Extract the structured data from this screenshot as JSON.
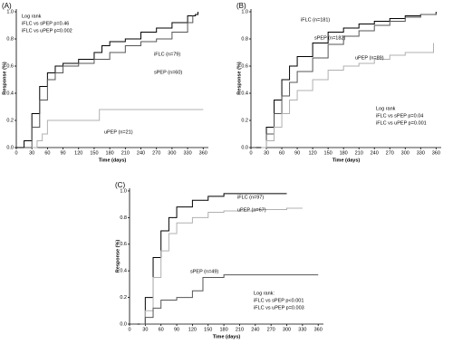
{
  "chart_data": [
    {
      "type": "step",
      "panel": "(A)",
      "y_label": "Response (%)",
      "x_label": "Time (days)",
      "annotations": [
        "Log rank",
        "iFLC vs sPEP p=0.46",
        "iFLC vs uPEP p=0.002"
      ],
      "xlim": [
        0,
        370
      ],
      "xticks": [
        0,
        30,
        60,
        90,
        120,
        150,
        180,
        210,
        240,
        270,
        300,
        330,
        360
      ],
      "ylim": [
        0,
        1.02
      ],
      "yticks": [
        {
          "value": 0,
          "label": "0.0"
        },
        0.2,
        0.4,
        0.6,
        0.8,
        {
          "value": 1,
          "label": "1.0"
        }
      ],
      "series": [
        {
          "name": "iFLC (n=79)",
          "color": "#000000",
          "x": [
            0,
            15,
            30,
            45,
            60,
            75,
            90,
            120,
            150,
            165,
            180,
            210,
            240,
            270,
            300,
            330,
            345,
            350
          ],
          "values": [
            0,
            0.05,
            0.25,
            0.45,
            0.55,
            0.6,
            0.62,
            0.65,
            0.7,
            0.75,
            0.78,
            0.8,
            0.85,
            0.88,
            0.92,
            0.97,
            0.98,
            1.0
          ]
        },
        {
          "name": "sPEP (n=60)",
          "color": "#555555",
          "x": [
            15,
            30,
            45,
            60,
            75,
            90,
            120,
            150,
            180,
            210,
            240,
            270,
            300,
            330,
            340
          ],
          "values": [
            0,
            0.15,
            0.35,
            0.5,
            0.55,
            0.6,
            0.62,
            0.65,
            0.7,
            0.75,
            0.78,
            0.8,
            0.85,
            0.92,
            0.97
          ]
        },
        {
          "name": "uPEP (n=21)",
          "color": "#b0b0b0",
          "x": [
            30,
            40,
            50,
            60,
            160,
            360
          ],
          "values": [
            0,
            0.05,
            0.1,
            0.2,
            0.28,
            0.28
          ]
        }
      ]
    },
    {
      "type": "step",
      "panel": "(B)",
      "y_label": "Response (%)",
      "x_label": "Time (days)",
      "annotations": [
        "Log rank",
        "iFLC vs sPEP p=0.04",
        "iFLC vs uPEP p=0.001"
      ],
      "xlim": [
        0,
        370
      ],
      "xticks": [
        0,
        30,
        60,
        90,
        120,
        150,
        180,
        210,
        240,
        270,
        300,
        330,
        360
      ],
      "ylim": [
        0,
        1.02
      ],
      "yticks": [
        {
          "value": 0,
          "label": "0.0"
        },
        0.2,
        0.4,
        0.6,
        0.8,
        {
          "value": 1,
          "label": "1.0"
        }
      ],
      "series": [
        {
          "name": "iFLC (n=181)",
          "color": "#000000",
          "x": [
            10,
            30,
            45,
            60,
            75,
            90,
            120,
            150,
            180,
            210,
            240,
            270,
            300,
            330,
            360
          ],
          "values": [
            0,
            0.15,
            0.35,
            0.5,
            0.6,
            0.67,
            0.77,
            0.85,
            0.88,
            0.91,
            0.93,
            0.95,
            0.97,
            0.98,
            1.0
          ]
        },
        {
          "name": "sPEP (n=182)",
          "color": "#555555",
          "x": [
            20,
            30,
            45,
            60,
            75,
            90,
            120,
            150,
            180,
            210,
            240,
            270,
            300,
            330,
            360
          ],
          "values": [
            0,
            0.1,
            0.25,
            0.38,
            0.48,
            0.56,
            0.66,
            0.76,
            0.82,
            0.86,
            0.9,
            0.93,
            0.96,
            0.98,
            0.99
          ]
        },
        {
          "name": "uPEP (n=89)",
          "color": "#b0b0b0",
          "x": [
            20,
            30,
            45,
            60,
            75,
            90,
            120,
            150,
            180,
            210,
            240,
            270,
            300,
            345,
            355
          ],
          "values": [
            0,
            0.05,
            0.15,
            0.25,
            0.35,
            0.42,
            0.5,
            0.57,
            0.6,
            0.62,
            0.65,
            0.68,
            0.7,
            0.7,
            0.77
          ]
        }
      ]
    },
    {
      "type": "step",
      "panel": "(C)",
      "y_label": "Response (%)",
      "x_label": "Time (days)",
      "annotations": [
        "Log rank:",
        "iFLC vs sPEP p<0.001",
        "iFLC vs uPEP p=0.003"
      ],
      "xlim": [
        0,
        370
      ],
      "xticks": [
        0,
        30,
        60,
        90,
        120,
        150,
        180,
        210,
        240,
        270,
        300,
        330,
        360
      ],
      "ylim": [
        0,
        1.02
      ],
      "yticks": [
        {
          "value": 0,
          "label": "0.0"
        },
        0.2,
        0.4,
        0.6,
        0.8,
        {
          "value": 1,
          "label": "1.0"
        }
      ],
      "series": [
        {
          "name": "iFLC (n=97)",
          "color": "#000000",
          "x": [
            15,
            30,
            45,
            60,
            75,
            90,
            120,
            150,
            180,
            300
          ],
          "values": [
            0,
            0.2,
            0.5,
            0.7,
            0.8,
            0.88,
            0.93,
            0.96,
            0.98,
            0.98
          ]
        },
        {
          "name": "uPEP (n=67)",
          "color": "#b0b0b0",
          "x": [
            20,
            30,
            45,
            60,
            75,
            90,
            120,
            150,
            180,
            240,
            300,
            330
          ],
          "values": [
            0,
            0.1,
            0.35,
            0.55,
            0.68,
            0.76,
            0.8,
            0.84,
            0.85,
            0.86,
            0.87,
            0.87
          ]
        },
        {
          "name": "sPEP (n=49)",
          "color": "#555555",
          "x": [
            20,
            30,
            45,
            60,
            90,
            120,
            140,
            180,
            360
          ],
          "values": [
            0,
            0.05,
            0.12,
            0.18,
            0.2,
            0.25,
            0.35,
            0.37,
            0.37
          ]
        }
      ]
    }
  ]
}
